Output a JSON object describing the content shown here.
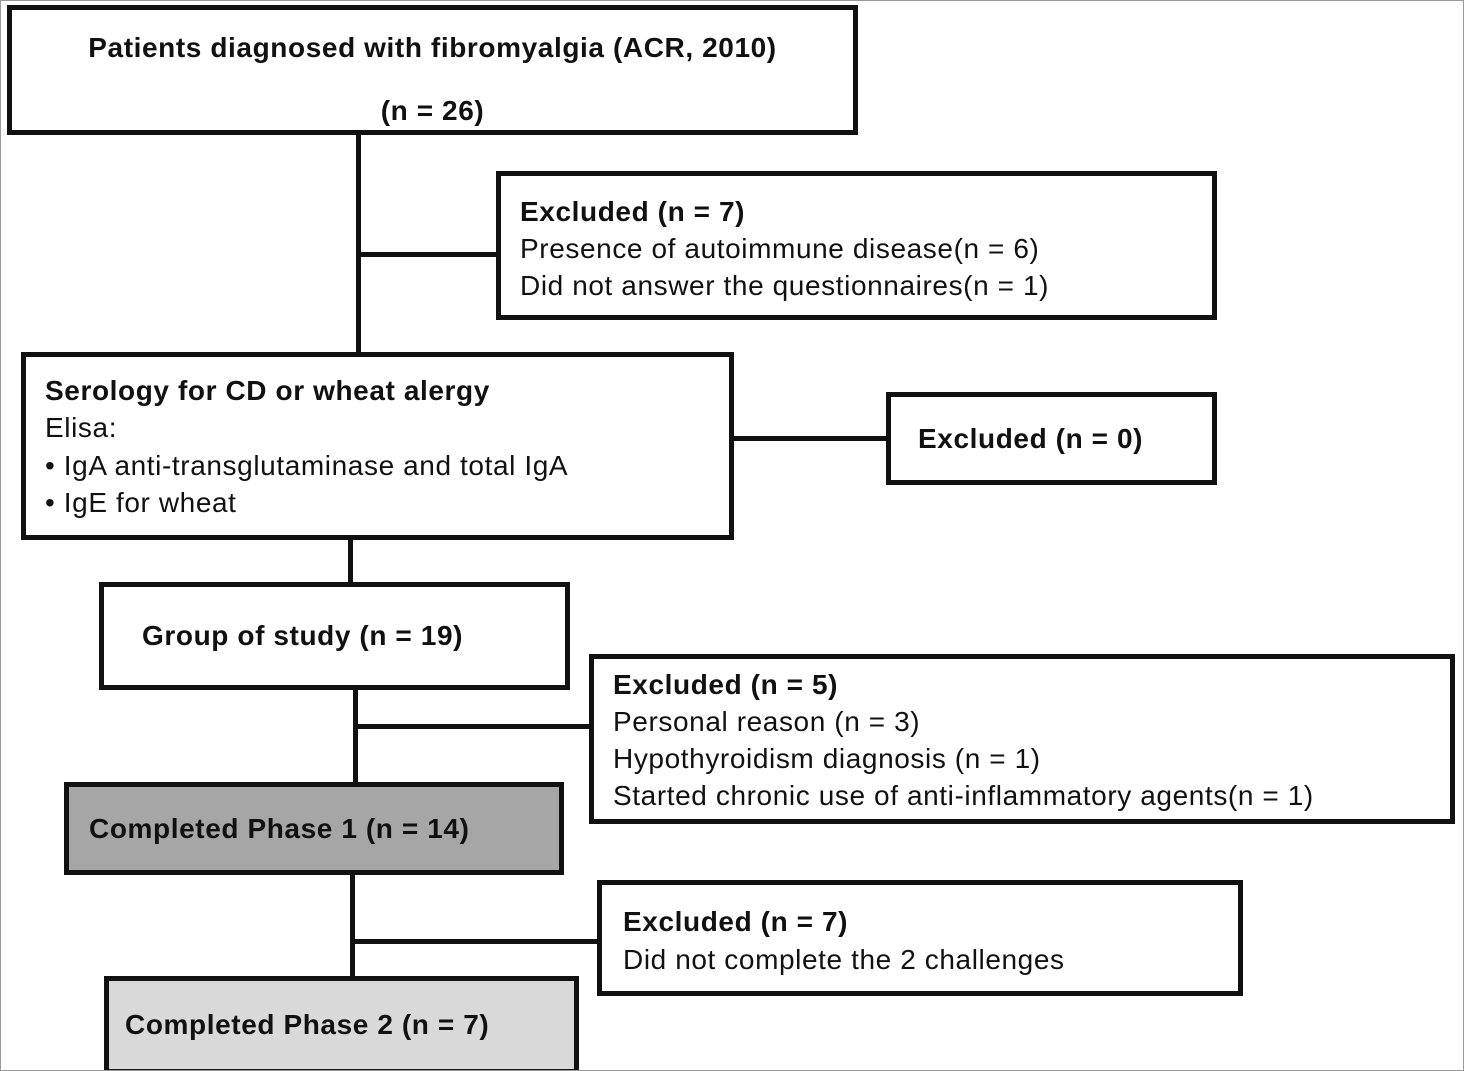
{
  "boxes": {
    "patients": {
      "title": "Patients diagnosed with fibromyalgia (ACR, 2010)",
      "count": "(n = 26)"
    },
    "excluded_1": {
      "title": "Excluded (n = 7)",
      "lines": [
        "Presence of autoimmune disease(n = 6)",
        "Did not answer the questionnaires(n = 1)"
      ]
    },
    "serology": {
      "title": "Serology for CD or wheat alergy",
      "lines": [
        "Elisa:",
        "• IgA anti-transglutaminase and total IgA",
        "• IgE for wheat"
      ]
    },
    "excluded_2": {
      "title": "Excluded (n = 0)"
    },
    "group": {
      "title": "Group of study (n = 19)"
    },
    "excluded_3": {
      "title": "Excluded (n = 5)",
      "lines": [
        "Personal reason  (n = 3)",
        "Hypothyroidism diagnosis  (n = 1)",
        "Started chronic use of anti-inflammatory agents(n = 1)"
      ]
    },
    "phase1": {
      "title": "Completed Phase 1 (n = 14)",
      "fill": "#a6a6a6"
    },
    "excluded_4": {
      "title": "Excluded (n = 7)",
      "lines": [
        "Did not complete the 2 challenges"
      ]
    },
    "phase2": {
      "title": "Completed Phase 2 (n = 7)",
      "fill": "#d9d9d9"
    }
  }
}
